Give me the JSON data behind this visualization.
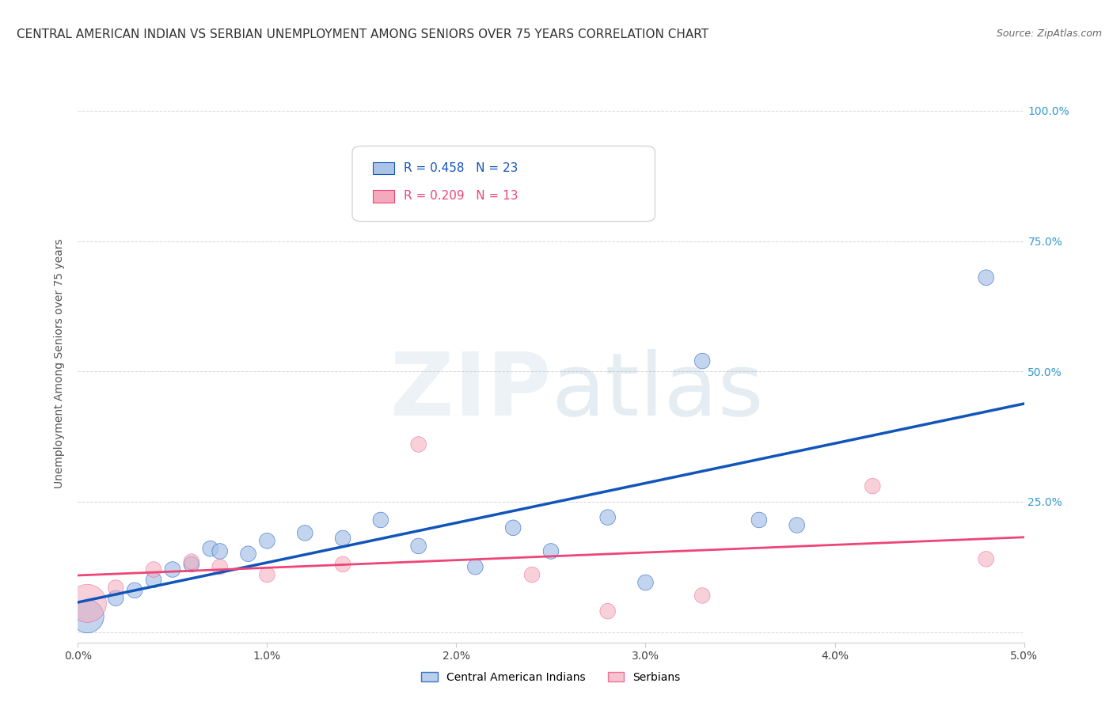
{
  "title": "CENTRAL AMERICAN INDIAN VS SERBIAN UNEMPLOYMENT AMONG SENIORS OVER 75 YEARS CORRELATION CHART",
  "source": "Source: ZipAtlas.com",
  "ylabel": "Unemployment Among Seniors over 75 years",
  "xlabel": "",
  "xlim": [
    0.0,
    0.05
  ],
  "ylim": [
    -0.02,
    1.05
  ],
  "yticks": [
    0.0,
    0.25,
    0.5,
    0.75,
    1.0
  ],
  "ytick_labels_left": [
    "",
    "",
    "",
    "",
    ""
  ],
  "ytick_labels_right": [
    "",
    "25.0%",
    "50.0%",
    "75.0%",
    "100.0%"
  ],
  "xticks": [
    0.0,
    0.01,
    0.02,
    0.03,
    0.04,
    0.05
  ],
  "xtick_labels": [
    "0.0%",
    "1.0%",
    "2.0%",
    "3.0%",
    "4.0%",
    "5.0%"
  ],
  "blue_color": "#AAC4E8",
  "pink_color": "#F4AABC",
  "blue_line_color": "#1155BB",
  "pink_line_color": "#EE4477",
  "legend_R_blue": "R = 0.458",
  "legend_N_blue": "N = 23",
  "legend_R_pink": "R = 0.209",
  "legend_N_pink": "N = 13",
  "legend_label_blue": "Central American Indians",
  "legend_label_pink": "Serbians",
  "watermark": "ZIPatlas",
  "blue_x": [
    0.0005,
    0.002,
    0.003,
    0.004,
    0.005,
    0.006,
    0.007,
    0.0075,
    0.009,
    0.01,
    0.012,
    0.014,
    0.016,
    0.018,
    0.021,
    0.023,
    0.025,
    0.028,
    0.03,
    0.033,
    0.036,
    0.038,
    0.048
  ],
  "blue_y": [
    0.03,
    0.065,
    0.08,
    0.1,
    0.12,
    0.13,
    0.16,
    0.155,
    0.15,
    0.175,
    0.19,
    0.18,
    0.215,
    0.165,
    0.125,
    0.2,
    0.155,
    0.22,
    0.095,
    0.52,
    0.215,
    0.205,
    0.68
  ],
  "blue_sizes": [
    1,
    1,
    1,
    1,
    1,
    1,
    1,
    1,
    1,
    1,
    1,
    1,
    1,
    1,
    1,
    1,
    1,
    1,
    1,
    1,
    1,
    1,
    1
  ],
  "pink_x": [
    0.0005,
    0.002,
    0.004,
    0.006,
    0.0075,
    0.01,
    0.014,
    0.018,
    0.024,
    0.028,
    0.033,
    0.042,
    0.048
  ],
  "pink_y": [
    0.055,
    0.085,
    0.12,
    0.135,
    0.125,
    0.11,
    0.13,
    0.36,
    0.11,
    0.04,
    0.07,
    0.28,
    0.14
  ],
  "pink_sizes": [
    1,
    1,
    1,
    1,
    1,
    1,
    1,
    1,
    1,
    1,
    1,
    1,
    1
  ],
  "grid_color": "#CCCCCC",
  "background_color": "#FFFFFF",
  "title_fontsize": 11,
  "axis_label_fontsize": 10,
  "tick_fontsize": 10,
  "source_fontsize": 9,
  "marker_size_base": 200,
  "big_blue_idx": 0,
  "big_blue_size": 900,
  "big_pink_idx": 0,
  "big_pink_size": 1200
}
